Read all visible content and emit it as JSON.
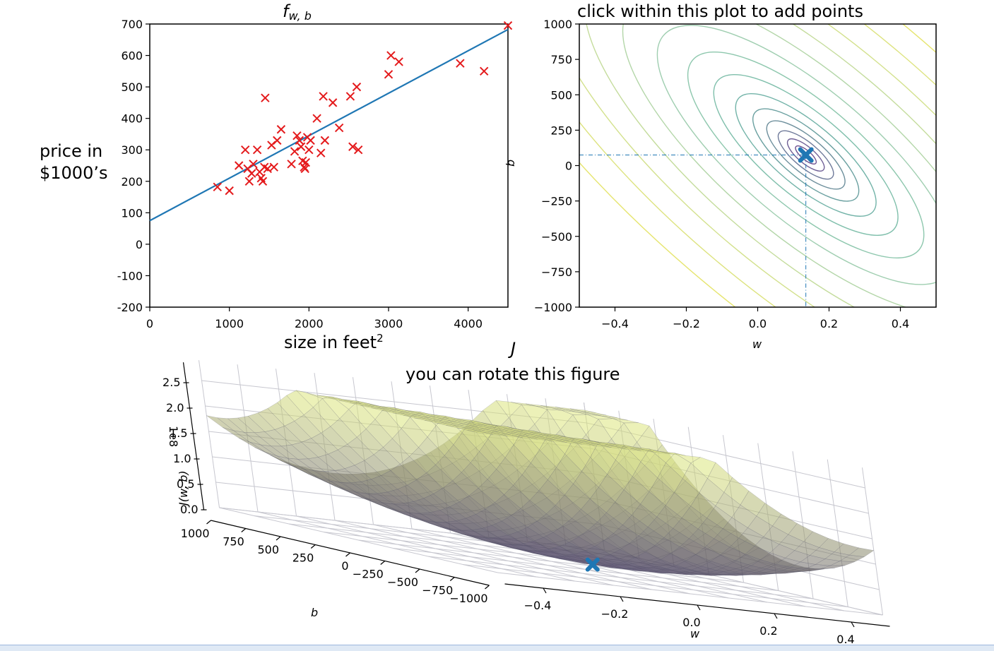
{
  "chart_data": [
    {
      "type": "scatter",
      "title": "f",
      "title_sub": "w, b",
      "xlabel": "size in feet",
      "xlabel_sup": "2",
      "ylabel_line1": "price in",
      "ylabel_line2": "$1000’s",
      "xlim": [
        0,
        4500
      ],
      "ylim": [
        -200,
        700
      ],
      "xticks": [
        "0",
        "1000",
        "2000",
        "3000",
        "4000"
      ],
      "yticks": [
        "700",
        "600",
        "500",
        "400",
        "300",
        "200",
        "100",
        "0",
        "-100",
        "-200"
      ],
      "marker_color": "#e41a1c",
      "line_color": "#1f77b4",
      "points": [
        [
          850,
          182
        ],
        [
          1000,
          170
        ],
        [
          1120,
          250
        ],
        [
          1200,
          300
        ],
        [
          1230,
          240
        ],
        [
          1250,
          200
        ],
        [
          1280,
          225
        ],
        [
          1300,
          255
        ],
        [
          1350,
          300
        ],
        [
          1380,
          230
        ],
        [
          1400,
          210
        ],
        [
          1420,
          200
        ],
        [
          1440,
          245
        ],
        [
          1450,
          465
        ],
        [
          1480,
          240
        ],
        [
          1530,
          315
        ],
        [
          1560,
          245
        ],
        [
          1600,
          330
        ],
        [
          1650,
          365
        ],
        [
          1780,
          255
        ],
        [
          1820,
          295
        ],
        [
          1850,
          345
        ],
        [
          1880,
          330
        ],
        [
          1900,
          310
        ],
        [
          1920,
          265
        ],
        [
          1940,
          245
        ],
        [
          1950,
          240
        ],
        [
          1960,
          260
        ],
        [
          1980,
          340
        ],
        [
          2000,
          300
        ],
        [
          2020,
          330
        ],
        [
          2100,
          400
        ],
        [
          2150,
          290
        ],
        [
          2180,
          470
        ],
        [
          2200,
          330
        ],
        [
          2300,
          450
        ],
        [
          2380,
          370
        ],
        [
          2520,
          470
        ],
        [
          2550,
          310
        ],
        [
          2600,
          500
        ],
        [
          2620,
          300
        ],
        [
          3000,
          540
        ],
        [
          3030,
          600
        ],
        [
          3130,
          580
        ],
        [
          3900,
          575
        ],
        [
          4200,
          550
        ],
        [
          4500,
          695
        ]
      ],
      "line": {
        "w": 0.135,
        "b": 75
      }
    },
    {
      "type": "contour",
      "title": "click within this plot to add points",
      "xlabel": "w",
      "ylabel": "b",
      "xlim": [
        -0.5,
        0.5
      ],
      "ylim": [
        -1000,
        1000
      ],
      "xticks": [
        "−0.4",
        "−0.2",
        "0.0",
        "0.2",
        "0.4"
      ],
      "yticks": [
        "1000",
        "750",
        "500",
        "250",
        "0",
        "−250",
        "−500",
        "−750",
        "−1000"
      ],
      "marker": {
        "w": 0.135,
        "b": 75
      },
      "marker_color": "#1f77b4"
    },
    {
      "type": "surface",
      "title": "J",
      "subtitle": "you can rotate this figure",
      "xlabel": "w",
      "ylabel": "b",
      "zlabel": "J(w, b)",
      "z_scale": "1e8",
      "zticks": [
        "0.0",
        "0.5",
        "1.0",
        "1.5",
        "2.0",
        "2.5"
      ],
      "wticks": [
        "−0.4",
        "−0.2",
        "0.0",
        "0.2",
        "0.4"
      ],
      "bticks": [
        "1000",
        "750",
        "500",
        "250",
        "0",
        "−250",
        "−500",
        "−750",
        "−1000"
      ],
      "marker_color": "#1f77b4"
    }
  ]
}
